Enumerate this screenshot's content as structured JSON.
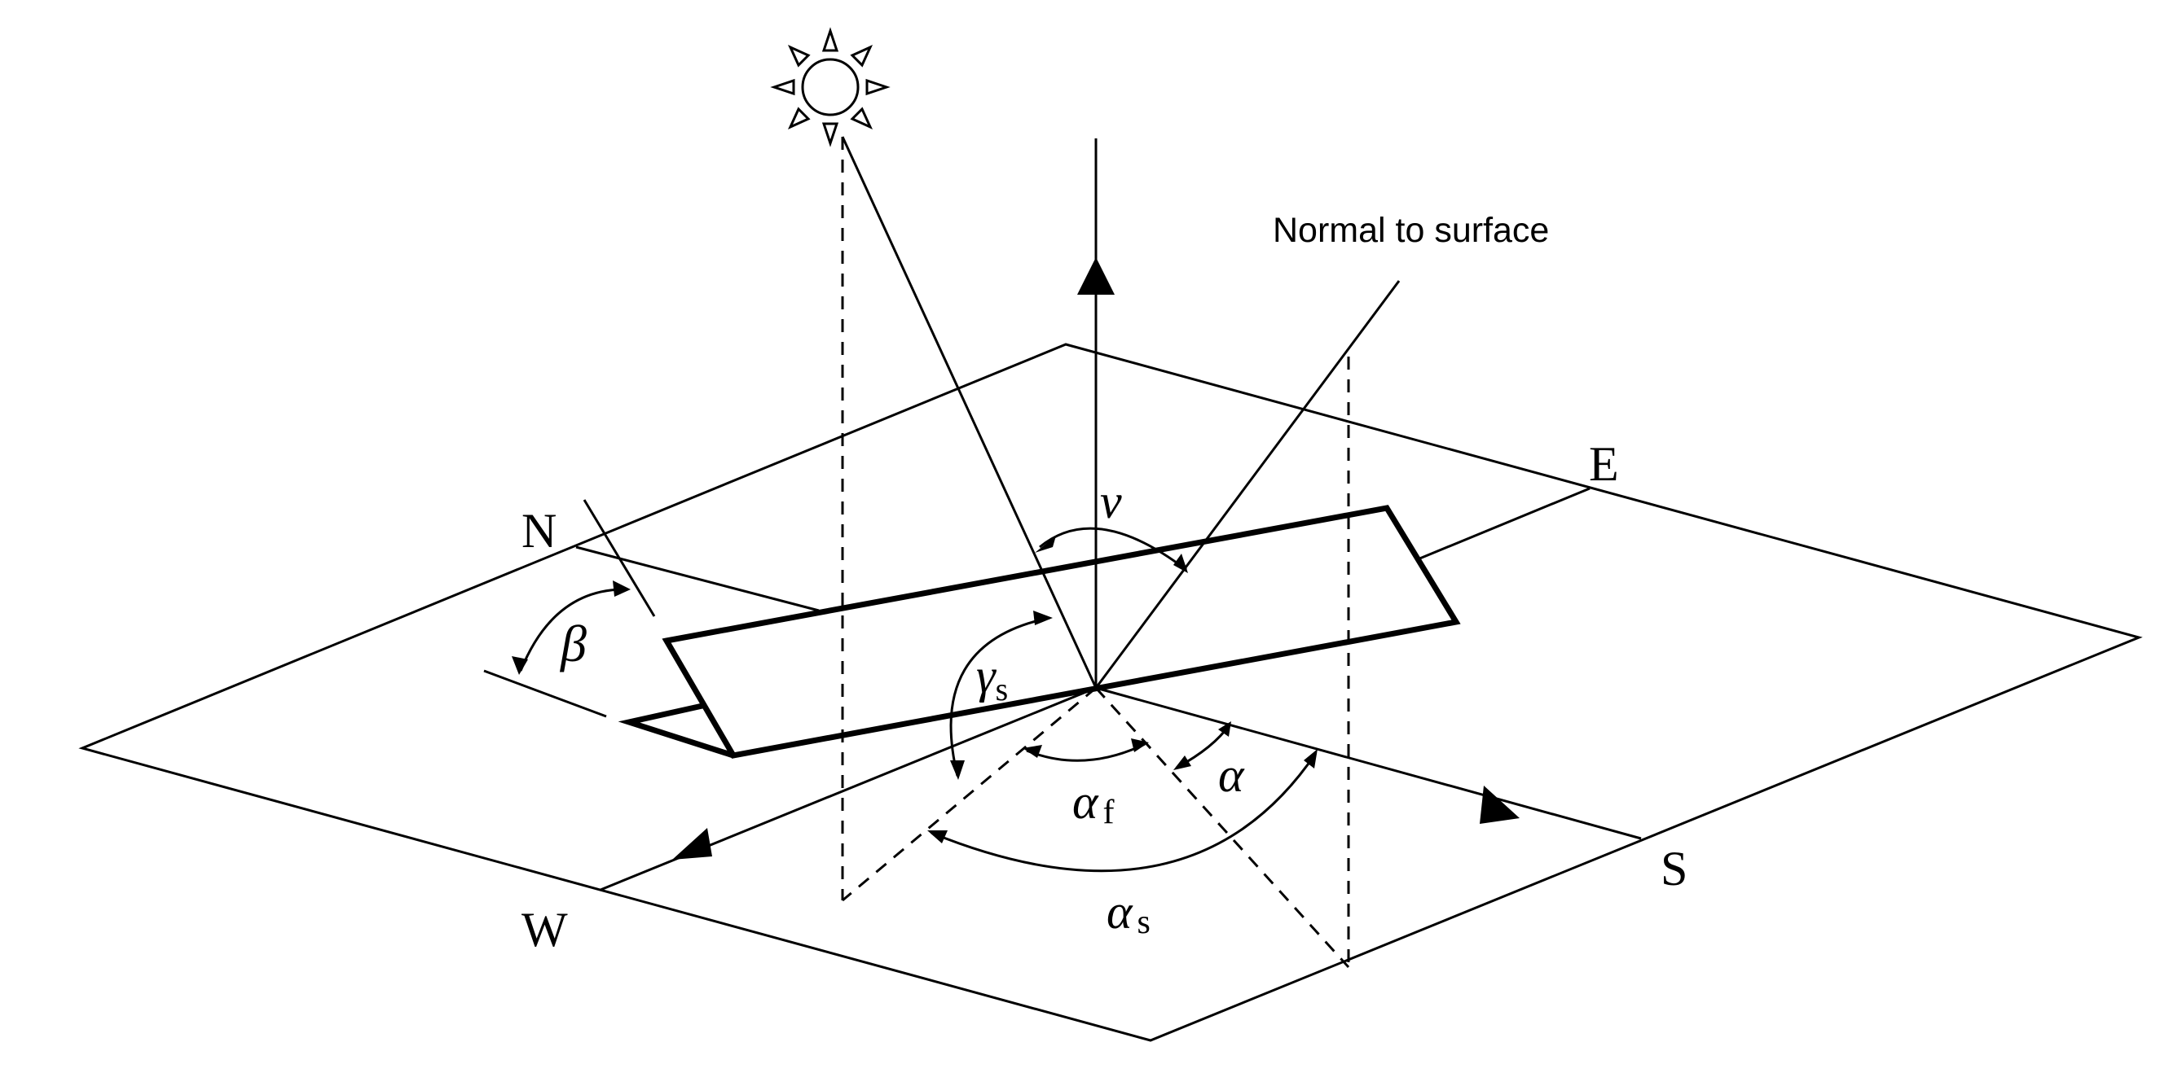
{
  "labels": {
    "north": "N",
    "east": "E",
    "south": "S",
    "west": "W",
    "normal": "Normal to surface",
    "nu": "ν",
    "beta": "β",
    "gamma": "γ",
    "gamma_sub": "s",
    "alpha": "α",
    "alpha_f": "α",
    "alpha_f_sub": "f",
    "alpha_s": "α",
    "alpha_s_sub": "s"
  },
  "colors": {
    "stroke": "#000000",
    "background": "#ffffff"
  }
}
